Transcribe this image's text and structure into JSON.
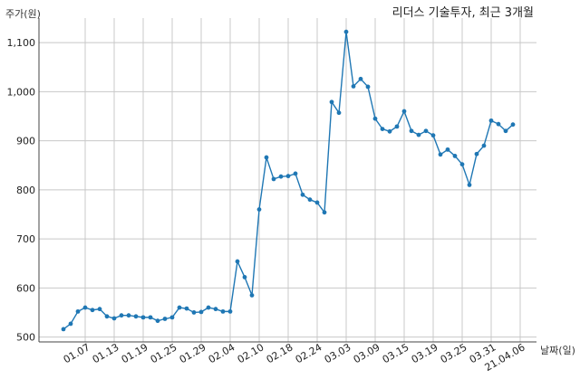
{
  "colors": {
    "line": "#1f77b4",
    "grid": "#c8c8c8",
    "axis": "#444444",
    "background": "#ffffff"
  },
  "chart_data": {
    "type": "line",
    "title": "리더스 기술투자, 최근 3개월",
    "ylabel": "주가(원)",
    "xlabel": "날짜(일)",
    "ylim": [
      490,
      1150
    ],
    "yticks": [
      500,
      600,
      700,
      800,
      900,
      1000,
      1100
    ],
    "ytick_labels": [
      "500",
      "600",
      "700",
      "800",
      "900",
      "1,000",
      "1,100"
    ],
    "xticks": [
      "01.07",
      "01.13",
      "01.19",
      "01.25",
      "01.29",
      "02.04",
      "02.10",
      "02.18",
      "02.24",
      "03.03",
      "03.09",
      "03.15",
      "03.19",
      "03.25",
      "03.31",
      "21.04.06"
    ],
    "grid": true,
    "series": [
      {
        "values": [
          516,
          527,
          552,
          560,
          555,
          557,
          542,
          538,
          544,
          544,
          542,
          540,
          540,
          533,
          537,
          540,
          560,
          558,
          550,
          551,
          560,
          557,
          552,
          552,
          654,
          622,
          585,
          760,
          866,
          822,
          827,
          828,
          833,
          790,
          780,
          774,
          754,
          979,
          957,
          1122,
          1011,
          1026,
          1010,
          945,
          924,
          919,
          929,
          960,
          920,
          912,
          920,
          911,
          872,
          882,
          869,
          852,
          810,
          873,
          890,
          941,
          934,
          920,
          933
        ]
      }
    ]
  }
}
